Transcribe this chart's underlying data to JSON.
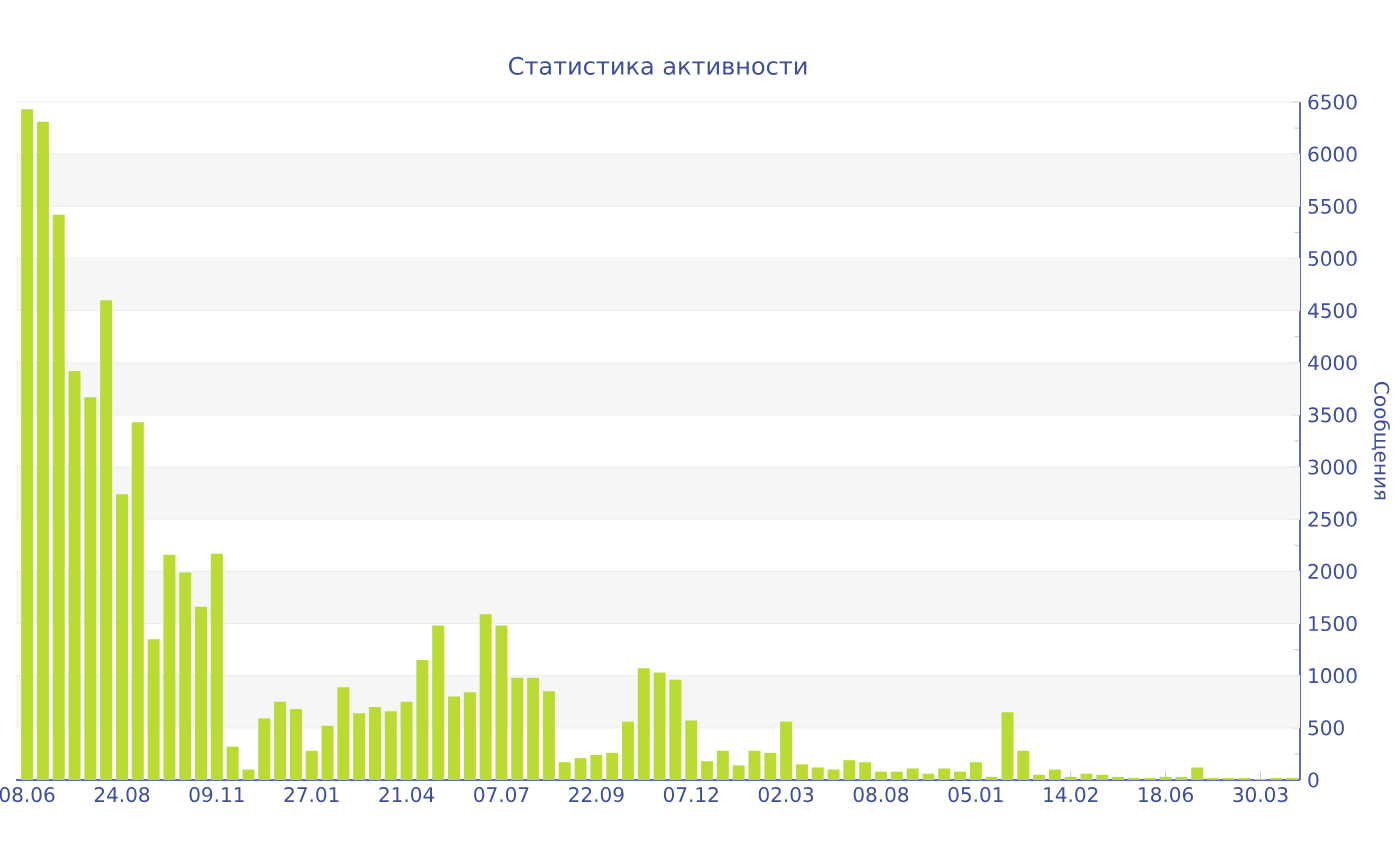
{
  "chart_data": {
    "type": "bar",
    "title": "Статистика активности",
    "ylabel": "Сообщения",
    "categories": [
      "08.06",
      null,
      null,
      null,
      null,
      null,
      "24.08",
      null,
      null,
      null,
      null,
      null,
      "09.11",
      null,
      null,
      null,
      null,
      null,
      "27.01",
      null,
      null,
      null,
      null,
      null,
      "21.04",
      null,
      null,
      null,
      null,
      null,
      "07.07",
      null,
      null,
      null,
      null,
      null,
      "22.09",
      null,
      null,
      null,
      null,
      null,
      "07.12",
      null,
      null,
      null,
      null,
      null,
      "02.03",
      null,
      null,
      null,
      null,
      null,
      "08.08",
      null,
      null,
      null,
      null,
      null,
      "05.01",
      null,
      null,
      null,
      null,
      null,
      "14.02",
      null,
      null,
      null,
      null,
      null,
      "18.06",
      null,
      null,
      null,
      null,
      null,
      "30.03",
      null,
      null
    ],
    "values": [
      6430,
      6310,
      5420,
      3920,
      3670,
      4600,
      2740,
      3430,
      1350,
      2160,
      1990,
      1660,
      2170,
      320,
      100,
      590,
      750,
      680,
      280,
      520,
      890,
      640,
      700,
      660,
      750,
      1150,
      1480,
      800,
      840,
      1590,
      1480,
      980,
      980,
      850,
      170,
      210,
      240,
      260,
      560,
      1070,
      1030,
      960,
      570,
      180,
      280,
      140,
      280,
      260,
      560,
      150,
      120,
      100,
      190,
      170,
      80,
      80,
      110,
      60,
      110,
      80,
      170,
      30,
      650,
      280,
      50,
      100,
      30,
      60,
      50,
      30,
      20,
      20,
      30,
      30,
      120,
      20,
      20,
      20,
      10,
      20,
      20
    ],
    "color": "#b8dc33",
    "ylim": [
      0,
      6500
    ],
    "yticks": [
      0,
      500,
      1000,
      1500,
      2000,
      2500,
      3000,
      3500,
      4000,
      4500,
      5000,
      5500,
      6000,
      6500
    ],
    "grid": "y"
  }
}
